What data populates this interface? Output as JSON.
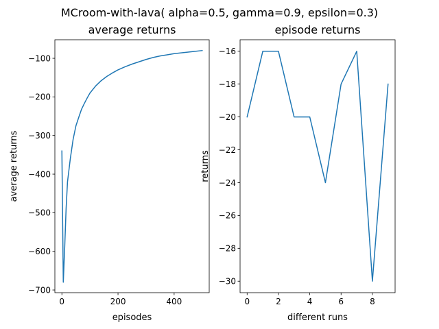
{
  "figure": {
    "suptitle": "MCroom-with-lava( alpha=0.5, gamma=0.9, epsilon=0.3)"
  },
  "colors": {
    "series": "#1f77b4",
    "axes": "#000000",
    "background": "#ffffff"
  },
  "chart_data": [
    {
      "type": "line",
      "title": "average returns",
      "xlabel": "episodes",
      "ylabel": "average returns",
      "xlim": [
        -25,
        525
      ],
      "ylim": [
        -707,
        -52
      ],
      "xticks": [
        0,
        200,
        400
      ],
      "yticks": [
        -700,
        -600,
        -500,
        -400,
        -300,
        -200,
        -100
      ],
      "xtick_labels": [
        "0",
        "200",
        "400"
      ],
      "ytick_labels": [
        "−700",
        "−600",
        "−500",
        "−400",
        "−300",
        "−200",
        "−100"
      ],
      "grid": false,
      "series": [
        {
          "x": [
            0,
            5,
            10,
            15,
            20,
            30,
            40,
            50,
            60,
            70,
            80,
            90,
            100,
            120,
            140,
            160,
            180,
            200,
            225,
            250,
            275,
            300,
            325,
            350,
            375,
            400,
            425,
            450,
            475,
            500
          ],
          "values": [
            -340,
            -680,
            -590,
            -490,
            -420,
            -360,
            -310,
            -275,
            -253,
            -232,
            -217,
            -203,
            -190,
            -172,
            -158,
            -147,
            -138,
            -130,
            -122,
            -115,
            -109,
            -103,
            -98,
            -94,
            -91,
            -88,
            -86,
            -84,
            -82,
            -80
          ]
        }
      ]
    },
    {
      "type": "line",
      "title": "episode returns",
      "xlabel": "different runs",
      "ylabel": "returns",
      "xlim": [
        -0.45,
        9.45
      ],
      "ylim": [
        -30.7,
        -15.3
      ],
      "xticks": [
        0,
        2,
        4,
        6,
        8
      ],
      "yticks": [
        -30,
        -28,
        -26,
        -24,
        -22,
        -20,
        -18,
        -16
      ],
      "xtick_labels": [
        "0",
        "2",
        "4",
        "6",
        "8"
      ],
      "ytick_labels": [
        "−30",
        "−28",
        "−26",
        "−24",
        "−22",
        "−20",
        "−18",
        "−16"
      ],
      "grid": false,
      "series": [
        {
          "x": [
            0,
            1,
            2,
            3,
            4,
            5,
            6,
            7,
            8,
            9
          ],
          "values": [
            -20,
            -16,
            -16,
            -20,
            -20,
            -24,
            -18,
            -16,
            -30,
            -18
          ]
        }
      ]
    }
  ]
}
